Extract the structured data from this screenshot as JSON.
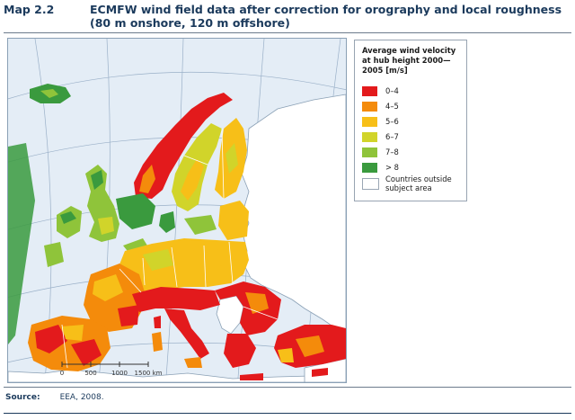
{
  "header": {
    "map_label": "Map 2.2",
    "title_line1": "ECMFW wind field data after correction for orography and local roughness",
    "title_line2": "(80 m onshore, 120 m offshore)"
  },
  "map": {
    "scale_ticks": [
      "0",
      "500",
      "1000",
      "1500 km"
    ],
    "colors": {
      "sea": "#e4edf6",
      "grid": "#9ab0c8",
      "outside_land": "#ffffff",
      "border": "#ffffff"
    }
  },
  "legend": {
    "title": "Average wind velocity at hub height 2000—2005 [m/s]",
    "items": [
      {
        "label": "0–4",
        "color": "#e31a1c"
      },
      {
        "label": "4–5",
        "color": "#f48b0b"
      },
      {
        "label": "5–6",
        "color": "#f7bf18"
      },
      {
        "label": "6–7",
        "color": "#d1d42a"
      },
      {
        "label": "7–8",
        "color": "#8fc43a"
      },
      {
        "label": "> 8",
        "color": "#3a9a3e"
      },
      {
        "label": "Countries outside subject area",
        "color": "#ffffff"
      }
    ]
  },
  "source": {
    "label": "Source:",
    "text": "EEA, 2008."
  }
}
